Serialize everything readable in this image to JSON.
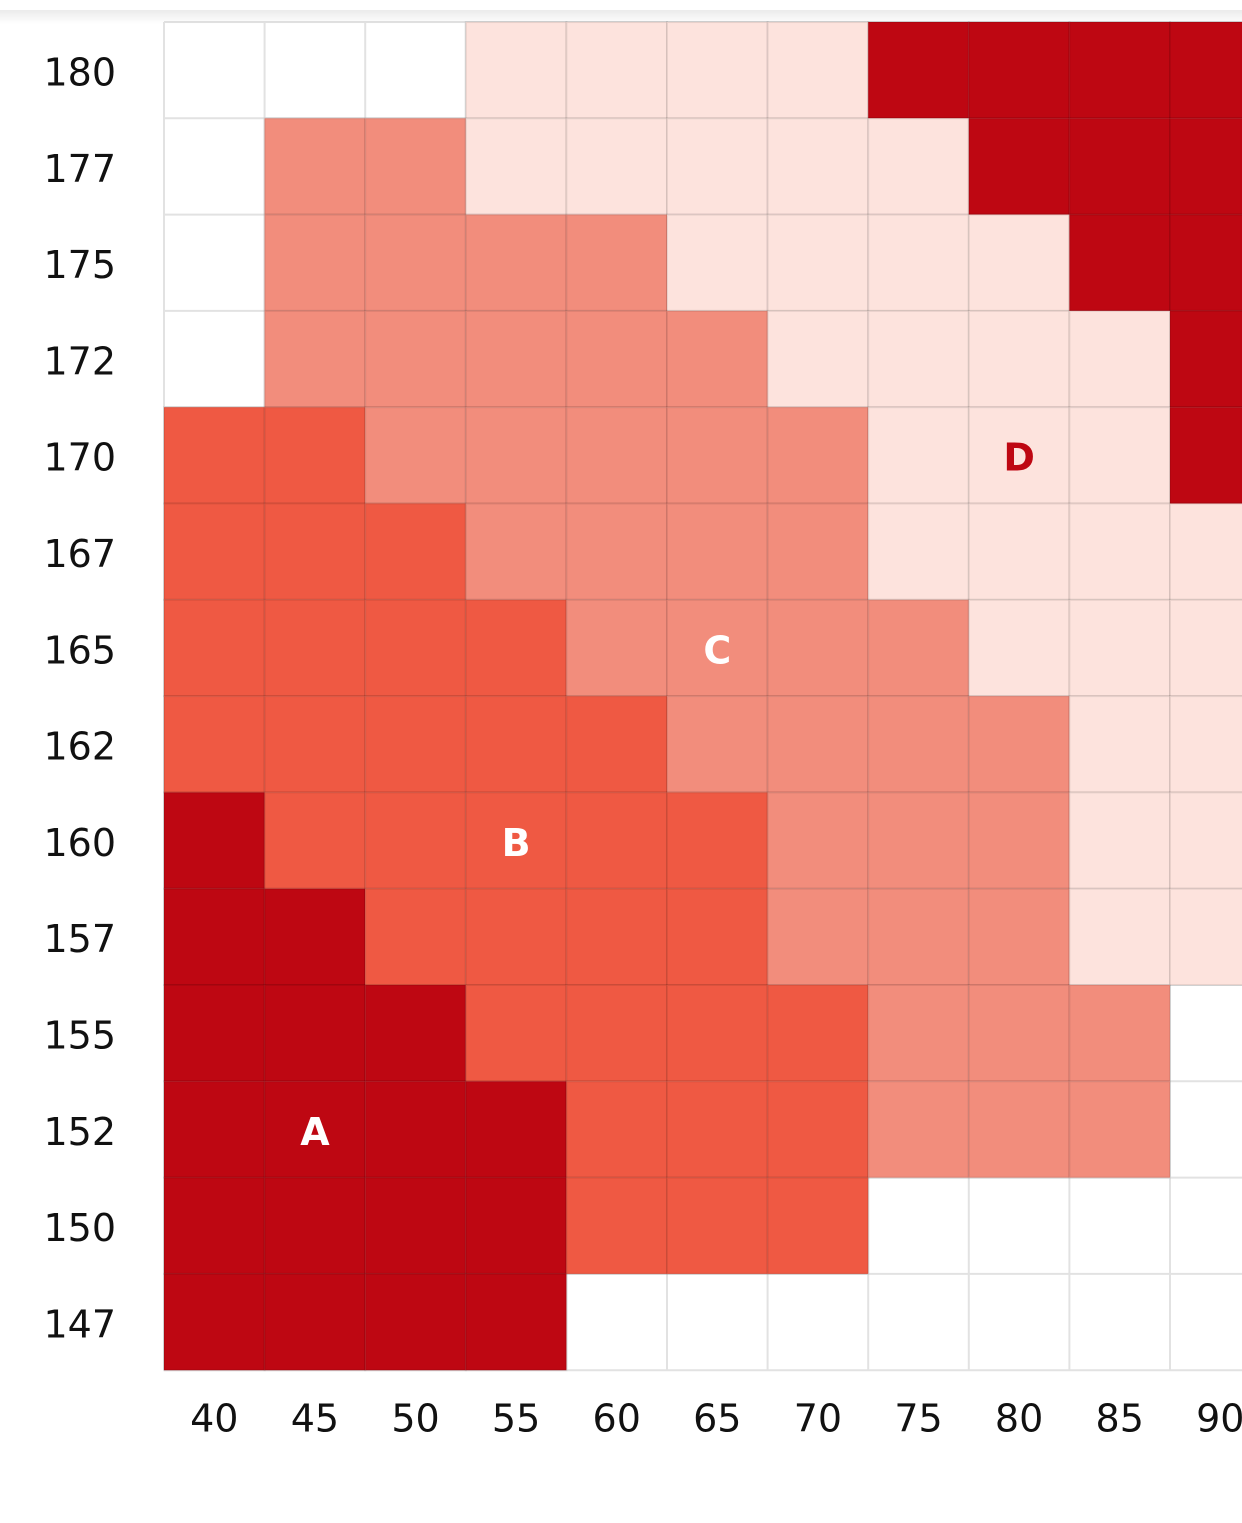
{
  "grid": {
    "row_labels": [
      "180",
      "177",
      "175",
      "172",
      "170",
      "167",
      "165",
      "162",
      "160",
      "157",
      "155",
      "152",
      "150",
      "147"
    ],
    "column_labels": [
      "40",
      "45",
      "50",
      "55",
      "60",
      "65",
      "70",
      "75",
      "80",
      "85",
      "90"
    ],
    "cells": [
      [
        null,
        null,
        null,
        "#fde3dd",
        "#fde3dd",
        "#fde3dd",
        "#fde3dd",
        "#be0712",
        "#be0712",
        "#be0712",
        "#be0712"
      ],
      [
        null,
        "#f28d7c",
        "#f28d7c",
        "#fde3dd",
        "#fde3dd",
        "#fde3dd",
        "#fde3dd",
        "#fde3dd",
        "#be0712",
        "#be0712",
        "#be0712"
      ],
      [
        null,
        "#f28d7c",
        "#f28d7c",
        "#f28d7c",
        "#f28d7c",
        "#fde3dd",
        "#fde3dd",
        "#fde3dd",
        "#fde3dd",
        "#be0712",
        "#be0712"
      ],
      [
        null,
        "#f28d7c",
        "#f28d7c",
        "#f28d7c",
        "#f28d7c",
        "#f28d7c",
        "#fde3dd",
        "#fde3dd",
        "#fde3dd",
        "#fde3dd",
        "#be0712"
      ],
      [
        "#ef5943",
        "#ef5943",
        "#f28d7c",
        "#f28d7c",
        "#f28d7c",
        "#f28d7c",
        "#f28d7c",
        "#fde3dd",
        "#fde3dd",
        "#fde3dd",
        "#be0712"
      ],
      [
        "#ef5943",
        "#ef5943",
        "#ef5943",
        "#f28d7c",
        "#f28d7c",
        "#f28d7c",
        "#f28d7c",
        "#fde3dd",
        "#fde3dd",
        "#fde3dd",
        "#fde3dd"
      ],
      [
        "#ef5943",
        "#ef5943",
        "#ef5943",
        "#ef5943",
        "#f28d7c",
        "#f28d7c",
        "#f28d7c",
        "#f28d7c",
        "#fde3dd",
        "#fde3dd",
        "#fde3dd"
      ],
      [
        "#ef5943",
        "#ef5943",
        "#ef5943",
        "#ef5943",
        "#ef5943",
        "#f28d7c",
        "#f28d7c",
        "#f28d7c",
        "#f28d7c",
        "#fde3dd",
        "#fde3dd"
      ],
      [
        "#be0712",
        "#ef5943",
        "#ef5943",
        "#ef5943",
        "#ef5943",
        "#ef5943",
        "#f28d7c",
        "#f28d7c",
        "#f28d7c",
        "#fde3dd",
        "#fde3dd"
      ],
      [
        "#be0712",
        "#be0712",
        "#ef5943",
        "#ef5943",
        "#ef5943",
        "#ef5943",
        "#f28d7c",
        "#f28d7c",
        "#f28d7c",
        "#fde3dd",
        "#fde3dd"
      ],
      [
        "#be0712",
        "#be0712",
        "#be0712",
        "#ef5943",
        "#ef5943",
        "#ef5943",
        "#ef5943",
        "#f28d7c",
        "#f28d7c",
        "#f28d7c",
        null
      ],
      [
        "#be0712",
        "#be0712",
        "#be0712",
        "#be0712",
        "#ef5943",
        "#ef5943",
        "#ef5943",
        "#f28d7c",
        "#f28d7c",
        "#f28d7c",
        null
      ],
      [
        "#be0712",
        "#be0712",
        "#be0712",
        "#be0712",
        "#ef5943",
        "#ef5943",
        "#ef5943",
        null,
        null,
        null,
        null
      ],
      [
        "#be0712",
        "#be0712",
        "#be0712",
        "#be0712",
        null,
        null,
        null,
        null,
        null,
        null,
        null
      ]
    ],
    "zone_labels": [
      {
        "text": "A",
        "color": "#ffffff"
      },
      {
        "text": "B",
        "color": "#ffffff"
      },
      {
        "text": "C",
        "color": "#ffffff"
      },
      {
        "text": "D",
        "color": "#be0712"
      }
    ]
  }
}
